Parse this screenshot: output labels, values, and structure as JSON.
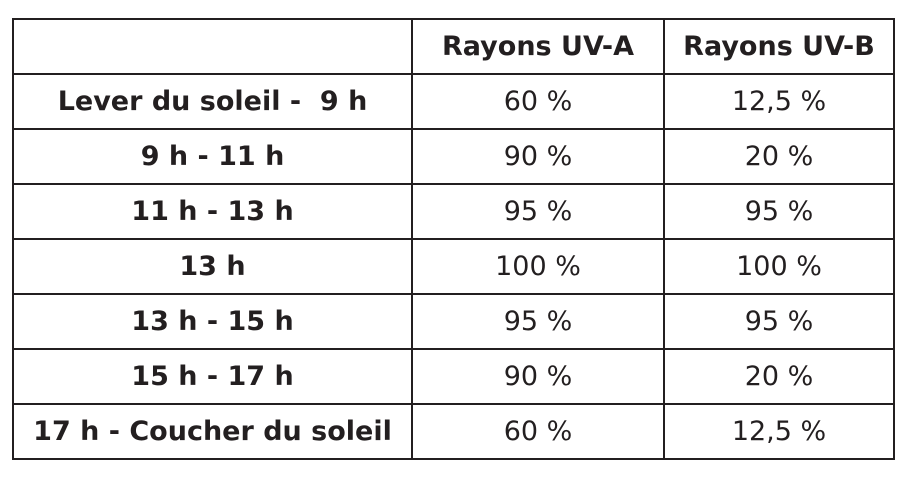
{
  "table": {
    "header": [
      "Rayons UV-A",
      "Rayons UV-B"
    ],
    "rows": [
      [
        "Lever du soleil -  9 h",
        "60 %",
        "12,5 %"
      ],
      [
        "9 h - 11 h",
        "90 %",
        "20 %"
      ],
      [
        "11 h - 13 h",
        "95 %",
        "95 %"
      ],
      [
        "13 h",
        "100 %",
        "100 %"
      ],
      [
        "13 h - 15 h",
        "95 %",
        "95 %"
      ],
      [
        "15 h - 17 h",
        "90 %",
        "20 %"
      ],
      [
        "17 h - Coucher du soleil",
        "60 %",
        "12,5 %"
      ]
    ]
  }
}
